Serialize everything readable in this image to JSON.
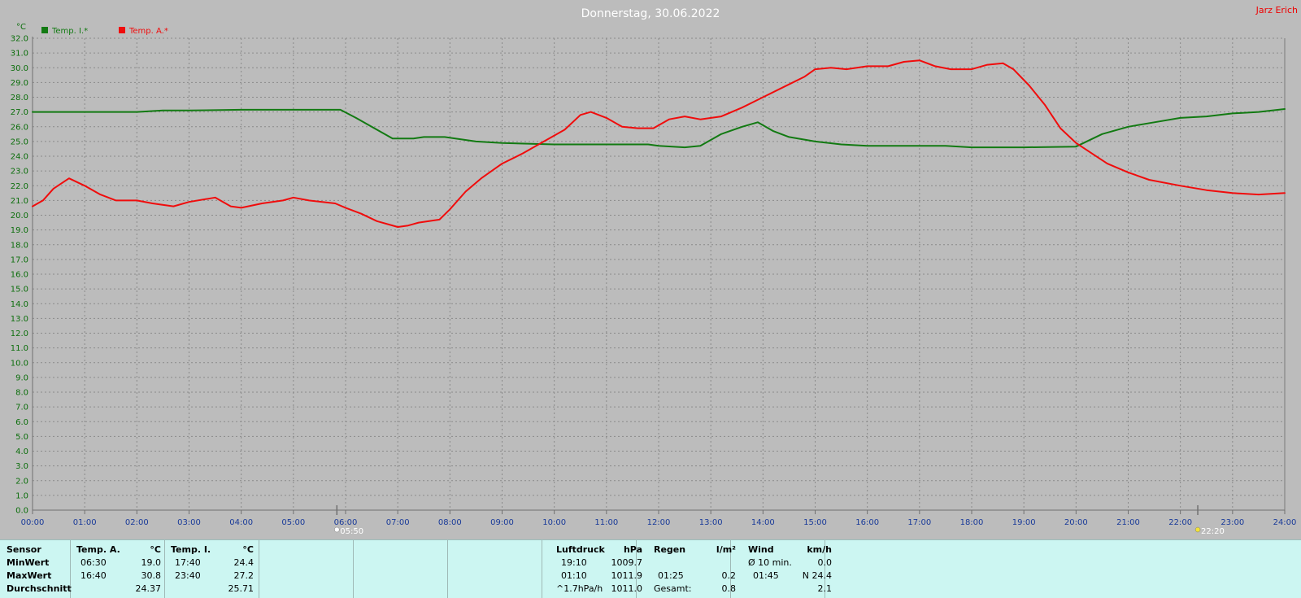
{
  "title": "Donnerstag, 30.06.2022",
  "author": "Jarz Erich",
  "colors": {
    "inside": "#127a12",
    "outside": "#f00c0c",
    "axis_y": "#0c6e0c",
    "axis_x": "#1a3b99",
    "background": "#bcbcbc"
  },
  "chart_data": {
    "type": "line",
    "ylabel": "°C",
    "ylim": [
      0,
      32
    ],
    "ytick_step": 1,
    "yticks": [
      "0.0",
      "1.0",
      "2.0",
      "3.0",
      "4.0",
      "5.0",
      "6.0",
      "7.0",
      "8.0",
      "9.0",
      "10.0",
      "11.0",
      "12.0",
      "13.0",
      "14.0",
      "15.0",
      "16.0",
      "17.0",
      "18.0",
      "19.0",
      "20.0",
      "21.0",
      "22.0",
      "23.0",
      "24.0",
      "25.0",
      "26.0",
      "27.0",
      "28.0",
      "29.0",
      "30.0",
      "31.0",
      "32.0"
    ],
    "xlim_hours": [
      0,
      24
    ],
    "xticks": [
      "00:00",
      "01:00",
      "02:00",
      "03:00",
      "04:00",
      "05:00",
      "06:00",
      "07:00",
      "08:00",
      "09:00",
      "10:00",
      "11:00",
      "12:00",
      "13:00",
      "14:00",
      "15:00",
      "16:00",
      "17:00",
      "18:00",
      "19:00",
      "20:00",
      "21:00",
      "22:00",
      "23:00",
      "24:00"
    ],
    "grid": true,
    "legend_position": "top-left",
    "markers": [
      {
        "time": "05:50",
        "label": "05:50"
      },
      {
        "time": "22:20",
        "label": "22:20"
      }
    ],
    "series": [
      {
        "name": "Temp. I.*",
        "color": "#127a12",
        "points": [
          [
            0,
            27.0
          ],
          [
            1,
            27.0
          ],
          [
            2,
            27.0
          ],
          [
            2.5,
            27.1
          ],
          [
            3,
            27.1
          ],
          [
            4,
            27.15
          ],
          [
            5,
            27.15
          ],
          [
            5.9,
            27.15
          ],
          [
            6.2,
            26.6
          ],
          [
            6.6,
            25.8
          ],
          [
            6.9,
            25.2
          ],
          [
            7.3,
            25.2
          ],
          [
            7.5,
            25.3
          ],
          [
            7.9,
            25.3
          ],
          [
            8.5,
            25.0
          ],
          [
            9,
            24.9
          ],
          [
            10,
            24.8
          ],
          [
            11,
            24.8
          ],
          [
            11.8,
            24.8
          ],
          [
            12,
            24.7
          ],
          [
            12.5,
            24.6
          ],
          [
            12.8,
            24.7
          ],
          [
            13.2,
            25.5
          ],
          [
            13.6,
            26.0
          ],
          [
            13.9,
            26.3
          ],
          [
            14.2,
            25.7
          ],
          [
            14.5,
            25.3
          ],
          [
            15,
            25.0
          ],
          [
            15.5,
            24.8
          ],
          [
            16,
            24.7
          ],
          [
            17,
            24.7
          ],
          [
            17.5,
            24.7
          ],
          [
            18,
            24.6
          ],
          [
            19,
            24.6
          ],
          [
            20,
            24.65
          ],
          [
            20.5,
            25.5
          ],
          [
            21,
            26.0
          ],
          [
            21.5,
            26.3
          ],
          [
            22,
            26.6
          ],
          [
            22.5,
            26.7
          ],
          [
            23,
            26.9
          ],
          [
            23.5,
            27.0
          ],
          [
            24,
            27.2
          ]
        ]
      },
      {
        "name": "Temp. A.*",
        "color": "#f00c0c",
        "points": [
          [
            0,
            20.6
          ],
          [
            0.2,
            21.0
          ],
          [
            0.4,
            21.8
          ],
          [
            0.7,
            22.5
          ],
          [
            1,
            22.0
          ],
          [
            1.3,
            21.4
          ],
          [
            1.6,
            21.0
          ],
          [
            2,
            21.0
          ],
          [
            2.3,
            20.8
          ],
          [
            2.7,
            20.6
          ],
          [
            3,
            20.9
          ],
          [
            3.5,
            21.2
          ],
          [
            3.8,
            20.6
          ],
          [
            4,
            20.5
          ],
          [
            4.4,
            20.8
          ],
          [
            4.8,
            21.0
          ],
          [
            5,
            21.2
          ],
          [
            5.3,
            21.0
          ],
          [
            5.8,
            20.8
          ],
          [
            6,
            20.5
          ],
          [
            6.3,
            20.1
          ],
          [
            6.6,
            19.6
          ],
          [
            7,
            19.2
          ],
          [
            7.2,
            19.3
          ],
          [
            7.4,
            19.5
          ],
          [
            7.6,
            19.6
          ],
          [
            7.8,
            19.7
          ],
          [
            8,
            20.4
          ],
          [
            8.3,
            21.6
          ],
          [
            8.6,
            22.5
          ],
          [
            9,
            23.5
          ],
          [
            9.4,
            24.2
          ],
          [
            9.8,
            25.0
          ],
          [
            10.2,
            25.8
          ],
          [
            10.5,
            26.8
          ],
          [
            10.7,
            27.0
          ],
          [
            11,
            26.6
          ],
          [
            11.3,
            26.0
          ],
          [
            11.6,
            25.9
          ],
          [
            11.9,
            25.9
          ],
          [
            12.2,
            26.5
          ],
          [
            12.5,
            26.7
          ],
          [
            12.8,
            26.5
          ],
          [
            13.2,
            26.7
          ],
          [
            13.6,
            27.3
          ],
          [
            14,
            28.0
          ],
          [
            14.4,
            28.7
          ],
          [
            14.8,
            29.4
          ],
          [
            15,
            29.9
          ],
          [
            15.3,
            30.0
          ],
          [
            15.6,
            29.9
          ],
          [
            16,
            30.1
          ],
          [
            16.4,
            30.1
          ],
          [
            16.7,
            30.4
          ],
          [
            17,
            30.5
          ],
          [
            17.3,
            30.1
          ],
          [
            17.6,
            29.9
          ],
          [
            18,
            29.9
          ],
          [
            18.3,
            30.2
          ],
          [
            18.6,
            30.3
          ],
          [
            18.8,
            29.9
          ],
          [
            19.1,
            28.8
          ],
          [
            19.4,
            27.5
          ],
          [
            19.7,
            25.9
          ],
          [
            20,
            24.9
          ],
          [
            20.3,
            24.2
          ],
          [
            20.6,
            23.5
          ],
          [
            21,
            22.9
          ],
          [
            21.4,
            22.4
          ],
          [
            22,
            22.0
          ],
          [
            22.5,
            21.7
          ],
          [
            23,
            21.5
          ],
          [
            23.5,
            21.4
          ],
          [
            24,
            21.5
          ]
        ]
      }
    ]
  },
  "stats": {
    "row_labels": {
      "sensor": "Sensor",
      "min": "MinWert",
      "max": "MaxWert",
      "avg": "Durchschnitt"
    },
    "temp_a": {
      "header": "Temp. A.",
      "unit": "°C",
      "min_time": "06:30",
      "min": "19.0",
      "max_time": "16:40",
      "max": "30.8",
      "avg": "24.37"
    },
    "temp_i": {
      "header": "Temp. I.",
      "unit": "°C",
      "min_time": "17:40",
      "min": "24.4",
      "max_time": "23:40",
      "max": "27.2",
      "avg": "25.71"
    },
    "pressure": {
      "header": "Luftdruck",
      "unit": "hPa",
      "min_time": "19:10",
      "min": "1009.7",
      "max_time": "01:10",
      "max": "1011.9",
      "trend": "^1.7hPa/h",
      "current": "1011.0"
    },
    "rain": {
      "header": "Regen",
      "unit": "l/m²",
      "max_time": "01:25",
      "max": "0.2",
      "total_label": "Gesamt:",
      "total": "0.8"
    },
    "wind": {
      "header": "Wind",
      "unit": "km/h",
      "avg_label": "Ø 10 min.",
      "avg": "0.0",
      "max_time": "01:45",
      "max": "N 24.4",
      "current": "2.1"
    }
  }
}
